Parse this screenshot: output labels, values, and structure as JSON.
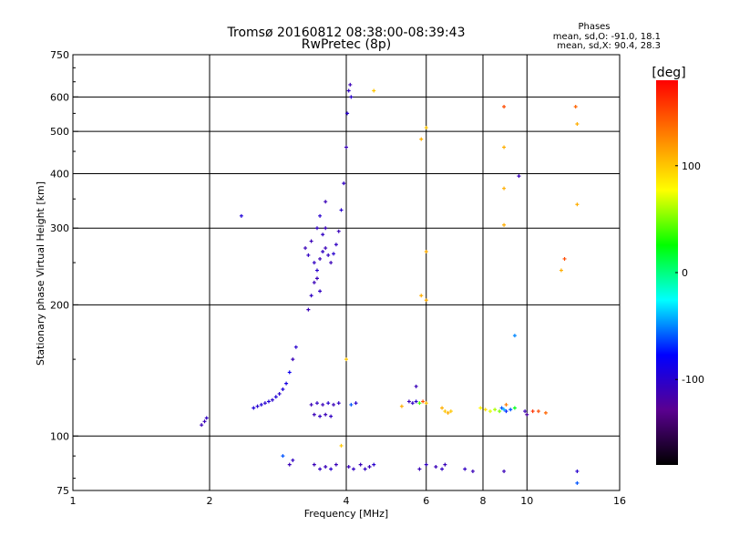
{
  "chart_data": {
    "type": "scatter",
    "title": "Tromsø 20160812 08:38:00-08:39:43",
    "subtitle": "RwPretec (8p)",
    "xlabel": "Frequency [MHz]",
    "ylabel": "Stationary phase Virtual Height [km]",
    "xscale": "log2",
    "yscale": "log",
    "xlim": [
      1,
      16
    ],
    "ylim": [
      75,
      750
    ],
    "x_ticks": [
      1,
      2,
      4,
      6,
      8,
      10,
      16
    ],
    "y_ticks": [
      75,
      100,
      200,
      300,
      400,
      500,
      600,
      750
    ],
    "y_major_grid": [
      100,
      200,
      300,
      400,
      500,
      600
    ],
    "grid": true,
    "stats": {
      "heading": "Phases",
      "line_o": "mean, sd,O: -91.0, 18.1",
      "line_x": "mean, sd,X:  90.4, 28.3"
    },
    "colorbar": {
      "label": "[deg]",
      "range": [
        -180,
        180
      ],
      "ticks": [
        100,
        0,
        -100
      ],
      "colors": [
        "#000000",
        "#5a0090",
        "#0000ff",
        "#00ffff",
        "#00ff00",
        "#ffff00",
        "#ff8000",
        "#ff0000"
      ]
    },
    "series": [
      {
        "comment_free": true,
        "points": [
          [
            1.92,
            106,
            -110
          ],
          [
            1.95,
            108,
            -110
          ],
          [
            1.97,
            110,
            -105
          ],
          [
            2.35,
            320,
            -95
          ],
          [
            2.5,
            116,
            -95
          ],
          [
            2.55,
            117,
            -100
          ],
          [
            2.6,
            118,
            -95
          ],
          [
            2.65,
            119,
            -100
          ],
          [
            2.7,
            120,
            -95
          ],
          [
            2.75,
            121,
            -100
          ],
          [
            2.8,
            123,
            -95
          ],
          [
            2.85,
            125,
            -100
          ],
          [
            2.9,
            128,
            -95
          ],
          [
            2.95,
            132,
            -90
          ],
          [
            3.0,
            140,
            -85
          ],
          [
            3.05,
            150,
            -110
          ],
          [
            3.1,
            160,
            -100
          ],
          [
            2.9,
            90,
            -60
          ],
          [
            3.0,
            86,
            -110
          ],
          [
            3.05,
            88,
            -105
          ],
          [
            3.35,
            118,
            -110
          ],
          [
            3.45,
            119,
            -105
          ],
          [
            3.55,
            118,
            -110
          ],
          [
            3.65,
            119,
            -100
          ],
          [
            3.75,
            118,
            -110
          ],
          [
            3.85,
            119,
            -105
          ],
          [
            3.4,
            112,
            -110
          ],
          [
            3.5,
            111,
            -105
          ],
          [
            3.6,
            112,
            -110
          ],
          [
            3.7,
            111,
            -105
          ],
          [
            3.4,
            86,
            -110
          ],
          [
            3.5,
            84,
            -105
          ],
          [
            3.6,
            85,
            -110
          ],
          [
            3.7,
            84,
            -100
          ],
          [
            3.8,
            86,
            -110
          ],
          [
            3.3,
            195,
            -110
          ],
          [
            3.35,
            210,
            -105
          ],
          [
            3.4,
            225,
            -110
          ],
          [
            3.45,
            240,
            -100
          ],
          [
            3.5,
            255,
            -110
          ],
          [
            3.55,
            265,
            -105
          ],
          [
            3.6,
            270,
            -110
          ],
          [
            3.65,
            260,
            -105
          ],
          [
            3.7,
            250,
            -110
          ],
          [
            3.75,
            262,
            -100
          ],
          [
            3.8,
            275,
            -105
          ],
          [
            3.85,
            295,
            -110
          ],
          [
            3.9,
            330,
            -100
          ],
          [
            3.95,
            380,
            -105
          ],
          [
            4.0,
            460,
            -110
          ],
          [
            4.02,
            550,
            -100
          ],
          [
            4.05,
            620,
            -105
          ],
          [
            4.08,
            640,
            -110
          ],
          [
            4.1,
            600,
            -100
          ],
          [
            3.25,
            270,
            -110
          ],
          [
            3.3,
            260,
            -105
          ],
          [
            3.35,
            280,
            -110
          ],
          [
            3.45,
            300,
            -105
          ],
          [
            3.5,
            320,
            -100
          ],
          [
            3.6,
            345,
            -110
          ],
          [
            3.55,
            290,
            -105
          ],
          [
            3.6,
            300,
            -110
          ],
          [
            3.4,
            250,
            -105
          ],
          [
            3.45,
            230,
            -110
          ],
          [
            3.5,
            215,
            -105
          ],
          [
            4.05,
            85,
            -110
          ],
          [
            4.15,
            84,
            -105
          ],
          [
            4.3,
            86,
            -110
          ],
          [
            4.4,
            84,
            -105
          ],
          [
            4.5,
            85,
            -110
          ],
          [
            4.6,
            86,
            -100
          ],
          [
            4.1,
            118,
            -60
          ],
          [
            4.2,
            119,
            -100
          ],
          [
            4.0,
            150,
            100
          ],
          [
            4.6,
            620,
            100
          ],
          [
            3.9,
            95,
            100
          ],
          [
            5.5,
            120,
            -110
          ],
          [
            5.6,
            119,
            -105
          ],
          [
            5.7,
            120,
            -100
          ],
          [
            5.8,
            119,
            40
          ],
          [
            5.9,
            120,
            150
          ],
          [
            6.0,
            119,
            100
          ],
          [
            5.3,
            117,
            110
          ],
          [
            5.7,
            130,
            -110
          ],
          [
            5.85,
            480,
            110
          ],
          [
            6.0,
            510,
            100
          ],
          [
            5.85,
            210,
            110
          ],
          [
            6.0,
            265,
            110
          ],
          [
            6.0,
            205,
            110
          ],
          [
            5.8,
            84,
            -110
          ],
          [
            6.0,
            86,
            -105
          ],
          [
            6.3,
            85,
            -110
          ],
          [
            6.5,
            84,
            -105
          ],
          [
            6.6,
            86,
            -110
          ],
          [
            6.5,
            116,
            110
          ],
          [
            6.6,
            114,
            100
          ],
          [
            6.7,
            113,
            110
          ],
          [
            6.8,
            114,
            100
          ],
          [
            7.3,
            84,
            -105
          ],
          [
            7.6,
            83,
            -110
          ],
          [
            7.9,
            116,
            80
          ],
          [
            8.1,
            115,
            90
          ],
          [
            8.3,
            114,
            70
          ],
          [
            8.5,
            115,
            60
          ],
          [
            8.7,
            114,
            50
          ],
          [
            8.8,
            116,
            -60
          ],
          [
            8.9,
            115,
            -40
          ],
          [
            9.0,
            114,
            -70
          ],
          [
            9.2,
            115,
            -60
          ],
          [
            9.4,
            116,
            20
          ],
          [
            8.9,
            570,
            150
          ],
          [
            8.9,
            460,
            110
          ],
          [
            8.9,
            370,
            110
          ],
          [
            8.9,
            305,
            110
          ],
          [
            9.0,
            118,
            130
          ],
          [
            9.6,
            395,
            -110
          ],
          [
            9.4,
            170,
            -50
          ],
          [
            8.9,
            83,
            -110
          ],
          [
            9.9,
            114,
            -110
          ],
          [
            10.0,
            112,
            -120
          ],
          [
            10.3,
            114,
            160
          ],
          [
            10.6,
            114,
            150
          ],
          [
            11.0,
            113,
            140
          ],
          [
            11.9,
            240,
            110
          ],
          [
            12.1,
            255,
            150
          ],
          [
            12.8,
            570,
            140
          ],
          [
            12.9,
            520,
            110
          ],
          [
            12.9,
            340,
            110
          ],
          [
            12.9,
            83,
            -100
          ],
          [
            12.9,
            78,
            -60
          ]
        ]
      }
    ]
  }
}
